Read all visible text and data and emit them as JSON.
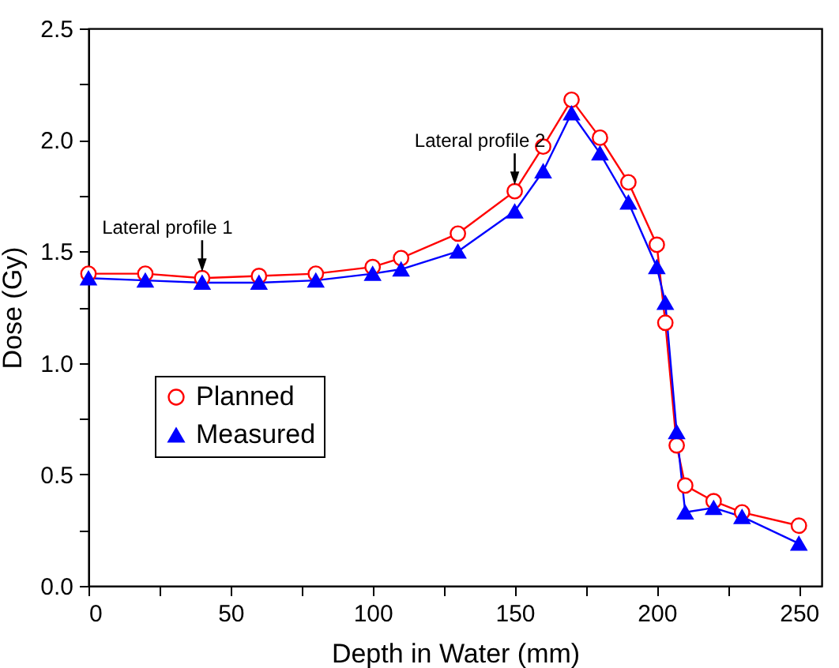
{
  "chart_data": {
    "type": "line",
    "xlabel": "Depth in Water (mm)",
    "ylabel": "Dose (Gy)",
    "xlim": [
      0,
      258
    ],
    "xticks": [
      0,
      {
        "value": 25,
        "label": null
      },
      50,
      {
        "value": 75,
        "label": null
      },
      100,
      {
        "value": 125,
        "label": null
      },
      150,
      {
        "value": 175,
        "label": null
      },
      200,
      {
        "value": 225,
        "label": null
      },
      250
    ],
    "ylim": [
      0,
      2.5
    ],
    "yticks": [
      "0.0",
      {
        "value": 0.25,
        "label": null
      },
      {
        "value": 0.5,
        "label": "0.5"
      },
      {
        "value": 0.75,
        "label": null
      },
      {
        "value": 1,
        "label": "1.0"
      },
      {
        "value": 1.25,
        "label": null
      },
      {
        "value": 1.5,
        "label": "1.5"
      },
      {
        "value": 1.75,
        "label": null
      },
      {
        "value": 2,
        "label": "2.0"
      },
      {
        "value": 2.25,
        "label": null
      },
      {
        "value": 2.5,
        "label": "2.5"
      }
    ],
    "x": [
      0,
      20,
      40,
      60,
      80,
      100,
      110,
      130,
      150,
      160,
      170,
      180,
      190,
      200,
      203,
      207,
      210,
      220,
      230,
      250
    ],
    "series": [
      {
        "name": "Planned",
        "color": "#ff0000",
        "marker": "circle",
        "values": [
          1.4,
          1.4,
          1.38,
          1.39,
          1.4,
          1.43,
          1.47,
          1.58,
          1.77,
          1.97,
          2.18,
          2.01,
          1.81,
          1.53,
          1.18,
          0.63,
          0.45,
          0.38,
          0.33,
          0.27
        ]
      },
      {
        "name": "Measured",
        "color": "#0000ff",
        "marker": "triangle",
        "values": [
          1.38,
          1.37,
          1.36,
          1.36,
          1.37,
          1.4,
          1.42,
          1.5,
          1.68,
          1.86,
          2.12,
          1.94,
          1.72,
          1.43,
          1.27,
          0.69,
          0.33,
          0.35,
          0.31,
          0.19
        ]
      }
    ],
    "annotations": [
      {
        "text": "Lateral profile 1",
        "x": 40,
        "y": 1.38
      },
      {
        "text": "Lateral profile 2",
        "x": 150,
        "y": 1.77
      }
    ],
    "legend": "bottom left",
    "grid": false
  }
}
